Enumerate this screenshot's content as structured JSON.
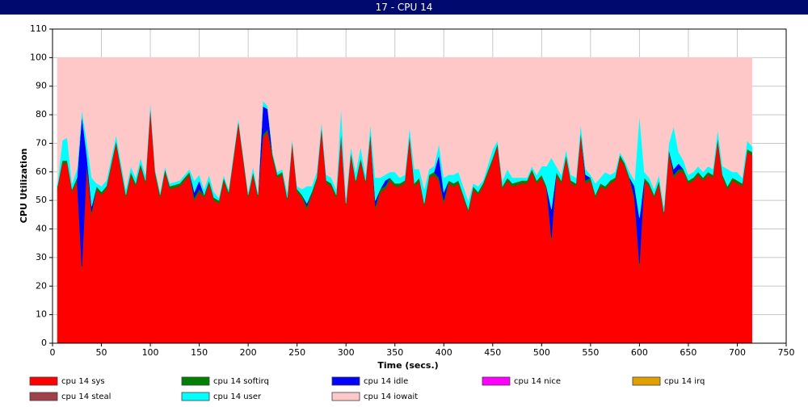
{
  "chart_data": {
    "type": "stacked-area",
    "title": "17 - CPU 14",
    "x_label": "Time (secs.)",
    "y_label": "CPU Utilization",
    "xlim": [
      0,
      750
    ],
    "xticks": [
      0,
      50,
      100,
      150,
      200,
      250,
      300,
      350,
      400,
      450,
      500,
      550,
      600,
      650,
      700,
      750
    ],
    "ylim": [
      0,
      110
    ],
    "yticks": [
      0,
      10,
      20,
      30,
      40,
      50,
      60,
      70,
      80,
      90,
      100,
      110
    ],
    "grid": true,
    "x": [
      5,
      10,
      15,
      20,
      25,
      30,
      35,
      40,
      45,
      50,
      55,
      65,
      75,
      80,
      85,
      90,
      95,
      100,
      105,
      110,
      115,
      120,
      130,
      140,
      145,
      150,
      155,
      160,
      165,
      170,
      175,
      180,
      190,
      200,
      205,
      210,
      215,
      220,
      225,
      230,
      235,
      240,
      245,
      250,
      255,
      260,
      265,
      270,
      275,
      280,
      285,
      290,
      295,
      300,
      305,
      310,
      315,
      320,
      325,
      330,
      335,
      340,
      345,
      350,
      355,
      360,
      365,
      370,
      375,
      380,
      385,
      390,
      395,
      400,
      405,
      410,
      415,
      420,
      425,
      430,
      435,
      440,
      450,
      455,
      460,
      465,
      470,
      480,
      485,
      490,
      495,
      500,
      505,
      510,
      515,
      520,
      525,
      530,
      535,
      540,
      545,
      550,
      555,
      560,
      565,
      570,
      575,
      580,
      585,
      590,
      595,
      600,
      605,
      610,
      615,
      620,
      625,
      630,
      635,
      640,
      645,
      650,
      655,
      660,
      665,
      670,
      675,
      680,
      685,
      690,
      695,
      700,
      705,
      710,
      715
    ],
    "series": [
      {
        "name": "cpu 14 sys",
        "color": "#ff0000",
        "values": [
          54,
          63,
          63,
          53,
          57,
          26,
          62,
          45,
          54,
          52,
          54,
          70,
          51,
          59,
          55,
          62,
          56,
          82,
          59,
          51,
          60,
          54,
          55,
          59,
          50,
          53,
          51,
          56,
          50,
          49,
          57,
          52,
          77,
          51,
          59,
          51,
          72,
          74,
          65,
          58,
          59,
          50,
          70,
          53,
          51,
          47,
          52,
          57,
          75,
          56,
          55,
          51,
          73,
          48,
          66,
          56,
          64,
          56,
          73,
          47,
          53,
          54,
          57,
          55,
          55,
          56,
          72,
          55,
          57,
          48,
          58,
          59,
          57,
          49,
          56,
          55,
          56,
          51,
          46,
          54,
          52,
          55,
          64,
          69,
          54,
          57,
          55,
          56,
          56,
          60,
          56,
          58,
          54,
          36,
          59,
          56,
          65,
          56,
          55,
          73,
          56,
          57,
          51,
          55,
          54,
          56,
          57,
          65,
          62,
          57,
          50,
          27,
          57,
          55,
          51,
          56,
          45,
          67,
          58,
          60,
          60,
          56,
          57,
          59,
          57,
          59,
          58,
          71,
          58,
          54,
          57,
          56,
          55,
          67,
          66
        ]
      },
      {
        "name": "cpu 14 softirq",
        "color": "#008000",
        "values": [
          1,
          1,
          1,
          1,
          1,
          1,
          1,
          1,
          1,
          1,
          1,
          1,
          1,
          1,
          1,
          1,
          1,
          1,
          1,
          1,
          1,
          1,
          1,
          1,
          1,
          1,
          1,
          1,
          1,
          1,
          1,
          1,
          1,
          1,
          1,
          1,
          1,
          1,
          1,
          1,
          1,
          1,
          1,
          1,
          1,
          1,
          1,
          1,
          1,
          1,
          1,
          1,
          1,
          1,
          1,
          1,
          1,
          1,
          1,
          1,
          1,
          1,
          1,
          1,
          1,
          1,
          1,
          1,
          1,
          1,
          1,
          1,
          1,
          1,
          1,
          1,
          1,
          1,
          1,
          1,
          1,
          1,
          1,
          1,
          1,
          1,
          1,
          1,
          1,
          1,
          1,
          1,
          1,
          1,
          1,
          1,
          1,
          1,
          1,
          1,
          1,
          1,
          1,
          1,
          1,
          1,
          1,
          1,
          1,
          1,
          1,
          1,
          1,
          1,
          1,
          1,
          1,
          1,
          1,
          1,
          1,
          1,
          1,
          1,
          1,
          1,
          1,
          1,
          1,
          1,
          1,
          1,
          1,
          1,
          1
        ]
      },
      {
        "name": "cpu 14 idle",
        "color": "#0000ff",
        "values": [
          0,
          0,
          0,
          0,
          0,
          53,
          3,
          2,
          0,
          0,
          0,
          0,
          0,
          0,
          0,
          0,
          0,
          0,
          0,
          0,
          0,
          0,
          0,
          0,
          2,
          3,
          0,
          0,
          0,
          0,
          0,
          0,
          0,
          0,
          0,
          0,
          10,
          7,
          0,
          0,
          0,
          0,
          0,
          0,
          0,
          1,
          0,
          0,
          0,
          0,
          0,
          0,
          0,
          0,
          0,
          0,
          0,
          0,
          0,
          2,
          0,
          2,
          0,
          0,
          0,
          0,
          0,
          0,
          0,
          0,
          0,
          0,
          8,
          3,
          0,
          0,
          0,
          0,
          0,
          0,
          0,
          0,
          0,
          0,
          0,
          0,
          0,
          0,
          0,
          0,
          0,
          0,
          0,
          10,
          0,
          0,
          0,
          0,
          0,
          0,
          2,
          0,
          0,
          0,
          0,
          0,
          0,
          0,
          0,
          0,
          4,
          16,
          0,
          0,
          0,
          0,
          0,
          0,
          2,
          2,
          0,
          0,
          0,
          0,
          0,
          0,
          0,
          0,
          0,
          0,
          0,
          0,
          0,
          0,
          0
        ]
      },
      {
        "name": "cpu 14 nice",
        "color": "#ff00ff",
        "values": [
          0,
          0,
          0,
          0,
          0,
          0,
          0,
          0,
          0,
          0,
          0,
          0,
          0,
          0,
          0,
          0,
          0,
          0,
          0,
          0,
          0,
          0,
          0,
          0,
          0,
          0,
          0,
          0,
          0,
          0,
          0,
          0,
          0,
          0,
          0,
          0,
          0,
          0,
          0,
          0,
          0,
          0,
          0,
          0,
          0,
          0,
          0,
          0,
          0,
          0,
          0,
          0,
          0,
          0,
          0,
          0,
          0,
          0,
          0,
          0,
          0,
          0,
          0,
          0,
          0,
          0,
          0,
          0,
          0,
          0,
          0,
          0,
          0,
          0,
          0,
          0,
          0,
          0,
          0,
          0,
          0,
          0,
          0,
          0,
          0,
          0,
          0,
          0,
          0,
          0,
          0,
          0,
          0,
          0,
          0,
          0,
          0,
          0,
          0,
          0,
          0,
          0,
          0,
          0,
          0,
          0,
          0,
          0,
          0,
          0,
          0,
          0,
          0,
          0,
          0,
          0,
          0,
          0,
          0,
          0,
          0,
          0,
          0,
          0,
          0,
          0,
          0,
          0,
          0,
          0,
          0,
          0,
          0,
          0,
          0
        ]
      },
      {
        "name": "cpu 14 irq",
        "color": "#e0a000",
        "values": [
          0,
          0,
          0,
          0,
          0,
          0,
          0,
          0,
          0,
          0,
          0,
          0,
          0,
          0,
          0,
          0,
          0,
          0,
          0,
          0,
          0,
          0,
          0,
          0,
          0,
          0,
          0,
          0,
          0,
          0,
          0,
          0,
          0,
          0,
          0,
          0,
          0,
          0,
          0,
          0,
          0,
          0,
          0,
          0,
          0,
          0,
          0,
          0,
          0,
          0,
          0,
          0,
          0,
          0,
          0,
          0,
          0,
          0,
          0,
          0,
          0,
          0,
          0,
          0,
          0,
          0,
          0,
          0,
          0,
          0,
          0,
          0,
          0,
          0,
          0,
          0,
          0,
          0,
          0,
          0,
          0,
          0,
          0,
          0,
          0,
          0,
          0,
          0,
          0,
          0,
          0,
          0,
          0,
          0,
          0,
          0,
          0,
          0,
          0,
          0,
          0,
          0,
          0,
          0,
          0,
          0,
          0,
          0,
          0,
          0,
          0,
          0,
          0,
          0,
          0,
          0,
          0,
          0,
          0,
          0,
          0,
          0,
          0,
          0,
          0,
          0,
          0,
          0,
          0,
          0,
          0,
          0,
          0,
          0,
          0
        ]
      },
      {
        "name": "cpu 14 steal",
        "color": "#a0404a",
        "values": [
          0,
          0,
          0,
          0,
          0,
          0,
          0,
          0,
          0,
          0,
          0,
          0,
          0,
          0,
          0,
          0,
          0,
          0,
          0,
          0,
          0,
          0,
          0,
          0,
          0,
          0,
          0,
          0,
          0,
          0,
          0,
          0,
          0,
          0,
          0,
          0,
          0,
          0,
          0,
          0,
          0,
          0,
          0,
          0,
          0,
          0,
          0,
          0,
          0,
          0,
          0,
          0,
          0,
          0,
          0,
          0,
          0,
          0,
          0,
          0,
          0,
          0,
          0,
          0,
          0,
          0,
          0,
          0,
          0,
          0,
          0,
          0,
          0,
          0,
          0,
          0,
          0,
          0,
          0,
          0,
          0,
          0,
          0,
          0,
          0,
          0,
          0,
          0,
          0,
          0,
          0,
          0,
          0,
          0,
          0,
          0,
          0,
          0,
          0,
          0,
          0,
          0,
          0,
          0,
          0,
          0,
          0,
          0,
          0,
          0,
          0,
          0,
          0,
          0,
          0,
          0,
          0,
          0,
          0,
          0,
          0,
          0,
          0,
          0,
          0,
          0,
          0,
          0,
          0,
          0,
          0,
          0,
          0,
          0,
          0
        ]
      },
      {
        "name": "cpu 14 user",
        "color": "#00ffff",
        "values": [
          1,
          7,
          8,
          2,
          3,
          2,
          5,
          10,
          1,
          2,
          2,
          2,
          2,
          2,
          2,
          2,
          2,
          2,
          1,
          1,
          1,
          1,
          1,
          1,
          4,
          2,
          2,
          2,
          2,
          1,
          1,
          1,
          1,
          1,
          2,
          1,
          2,
          1,
          1,
          1,
          1,
          2,
          1,
          1,
          2,
          6,
          2,
          2,
          2,
          2,
          2,
          2,
          9,
          2,
          2,
          3,
          4,
          2,
          3,
          8,
          4,
          2,
          2,
          4,
          2,
          2,
          3,
          5,
          3,
          5,
          2,
          2,
          4,
          5,
          2,
          3,
          3,
          3,
          3,
          1,
          2,
          1,
          3,
          1,
          2,
          3,
          2,
          1,
          1,
          1,
          2,
          3,
          7,
          18,
          2,
          2,
          2,
          2,
          2,
          3,
          2,
          1,
          4,
          2,
          5,
          2,
          2,
          1,
          1,
          2,
          2,
          36,
          2,
          2,
          2,
          2,
          2,
          2,
          15,
          4,
          3,
          2,
          2,
          2,
          2,
          2,
          2,
          3,
          3,
          6,
          2,
          3,
          2,
          3,
          2
        ]
      },
      {
        "name": "cpu 14 iowait",
        "color": "#ffc8c8",
        "values": [
          44,
          29,
          28,
          44,
          39,
          18,
          29,
          42,
          44,
          45,
          43,
          27,
          46,
          38,
          42,
          35,
          41,
          15,
          39,
          47,
          38,
          44,
          43,
          39,
          43,
          41,
          46,
          41,
          47,
          49,
          41,
          46,
          21,
          47,
          38,
          47,
          15,
          17,
          33,
          40,
          39,
          47,
          28,
          45,
          46,
          45,
          45,
          40,
          22,
          41,
          42,
          46,
          17,
          49,
          31,
          40,
          31,
          41,
          23,
          42,
          42,
          41,
          40,
          40,
          42,
          41,
          24,
          39,
          39,
          46,
          39,
          38,
          30,
          42,
          41,
          41,
          40,
          45,
          50,
          44,
          45,
          43,
          32,
          29,
          43,
          39,
          42,
          42,
          42,
          38,
          41,
          38,
          38,
          35,
          38,
          41,
          32,
          41,
          42,
          23,
          39,
          41,
          44,
          42,
          40,
          41,
          40,
          33,
          36,
          40,
          43,
          20,
          40,
          42,
          46,
          41,
          52,
          30,
          24,
          33,
          36,
          41,
          40,
          38,
          40,
          38,
          39,
          25,
          38,
          39,
          40,
          40,
          42,
          29,
          31
        ]
      }
    ]
  }
}
